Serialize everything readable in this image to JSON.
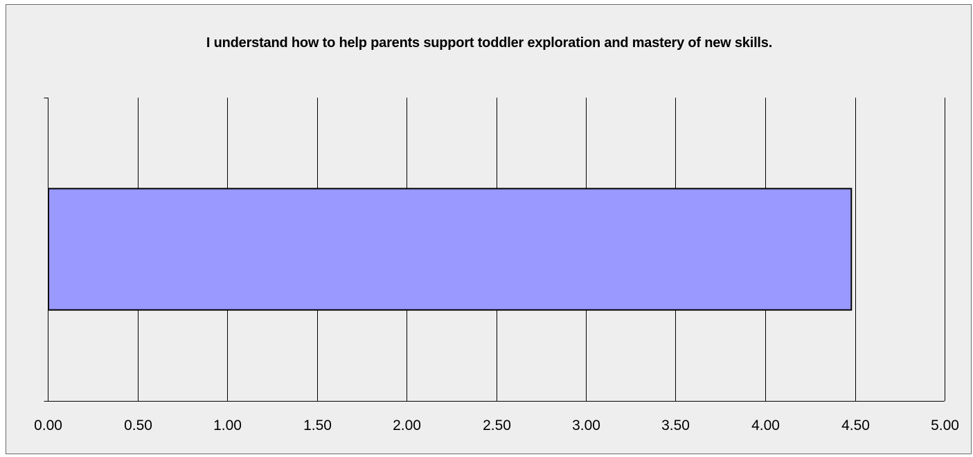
{
  "chart_data": {
    "type": "bar",
    "orientation": "horizontal",
    "title": "I understand how to help parents support toddler exploration and mastery of new skills.",
    "categories": [
      ""
    ],
    "values": [
      4.48
    ],
    "xlim": [
      0,
      5
    ],
    "xticks": [
      "0.00",
      "0.50",
      "1.00",
      "1.50",
      "2.00",
      "2.50",
      "3.00",
      "3.50",
      "4.00",
      "4.50",
      "5.00"
    ],
    "grid": "vertical",
    "legend": "none",
    "colors": {
      "bar_fill": "#9999ff",
      "bar_stroke": "#000000",
      "background": "#eeeeee",
      "grid": "#000000"
    }
  }
}
